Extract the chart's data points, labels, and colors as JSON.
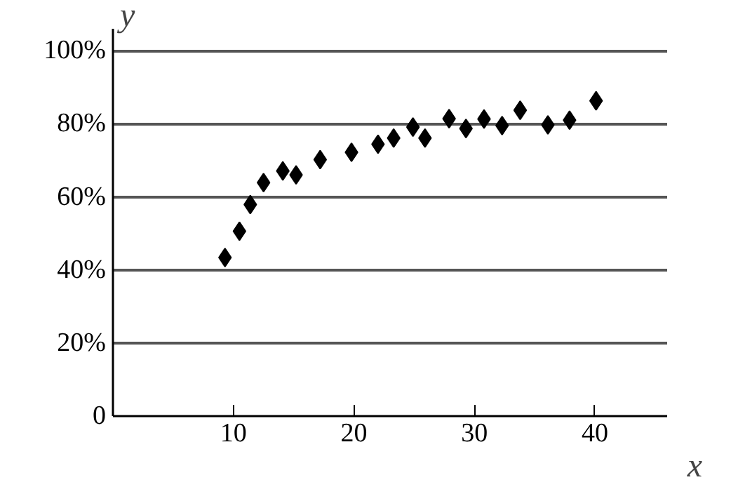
{
  "chart_data": {
    "type": "scatter",
    "xlabel": "x",
    "ylabel": "y",
    "marker": "diamond",
    "grid": "y",
    "x": [
      9.3,
      10.5,
      11.4,
      12.5,
      14.1,
      15.2,
      17.2,
      19.8,
      22.0,
      23.3,
      24.9,
      25.9,
      27.9,
      29.3,
      30.8,
      32.3,
      33.8,
      36.1,
      37.9,
      40.1
    ],
    "series": [
      {
        "color": "#000000",
        "values": [
          43.4,
          50.6,
          57.9,
          63.9,
          67.1,
          66.0,
          70.2,
          72.2,
          74.4,
          76.1,
          79.1,
          76.1,
          81.4,
          78.7,
          81.3,
          79.5,
          83.7,
          79.7,
          81.0,
          86.3
        ]
      }
    ],
    "xlim": [
      0,
      46
    ],
    "xticks": [
      10,
      20,
      30,
      40
    ],
    "ylim": [
      0,
      106
    ],
    "yticks": [
      {
        "value": 0,
        "label": "0"
      },
      {
        "value": 20,
        "label": "20%"
      },
      {
        "value": 40,
        "label": "40%"
      },
      {
        "value": 60,
        "label": "60%"
      },
      {
        "value": 80,
        "label": "80%"
      },
      {
        "value": 100,
        "label": "100%"
      }
    ]
  }
}
